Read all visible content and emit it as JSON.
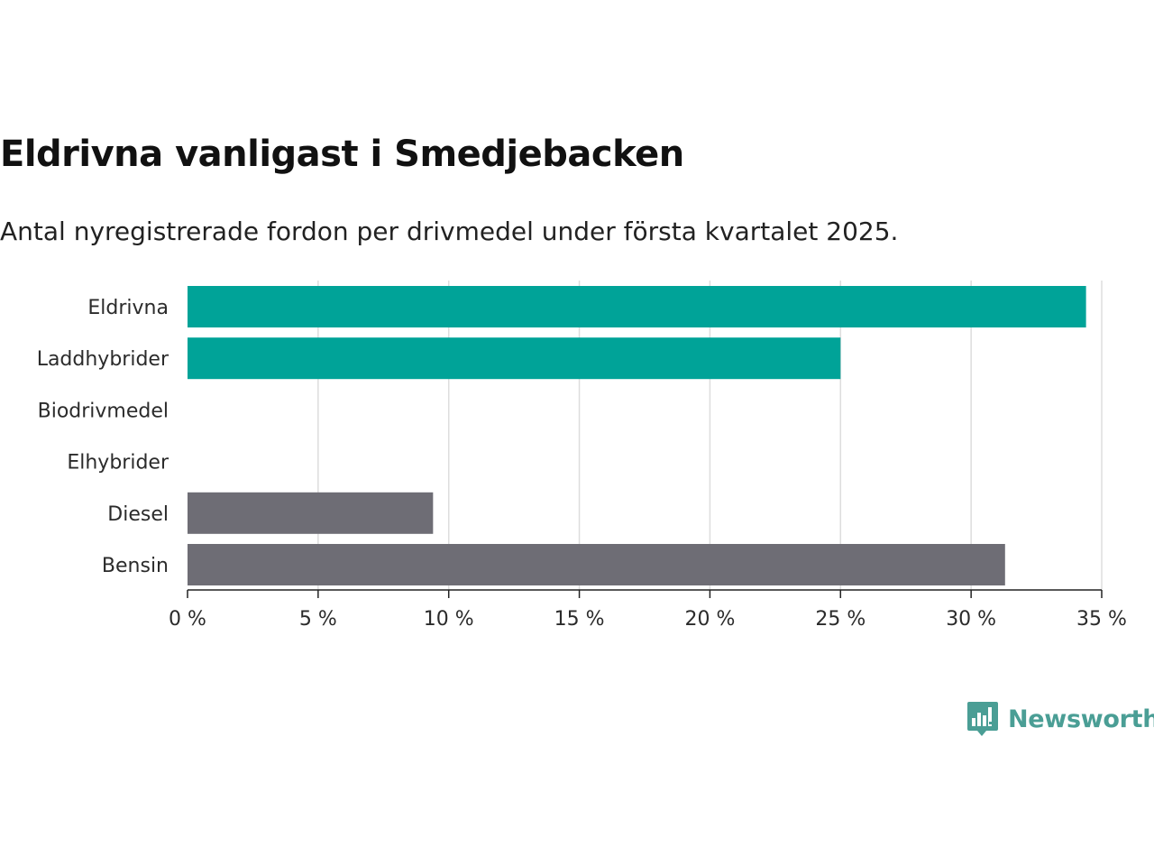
{
  "title": "Eldrivna vanligast i Smedjebacken",
  "subtitle": "Antal nyregistrerade fordon per drivmedel under första kvartalet 2025.",
  "brand": {
    "name": "Newsworthy",
    "icon": "newsworthy-bar-chart-logo",
    "color": "#4a9e95"
  },
  "colors": {
    "highlight": "#00a398",
    "other": "#6e6d75",
    "grid": "#dddddd",
    "axis": "#222222"
  },
  "chart_data": {
    "type": "bar",
    "orientation": "horizontal",
    "title": "Eldrivna vanligast i Smedjebacken",
    "subtitle": "Antal nyregistrerade fordon per drivmedel under första kvartalet 2025.",
    "categories": [
      "Eldrivna",
      "Laddhybrider",
      "Biodrivmedel",
      "Elhybrider",
      "Diesel",
      "Bensin"
    ],
    "values": [
      34.4,
      25.0,
      0,
      0,
      9.4,
      31.3
    ],
    "bar_colors": [
      "#00a398",
      "#00a398",
      "#00a398",
      "#6e6d75",
      "#6e6d75",
      "#6e6d75"
    ],
    "unit": "%",
    "xlim": [
      0,
      35
    ],
    "xticks": [
      0,
      5,
      10,
      15,
      20,
      25,
      30,
      35
    ],
    "xtick_labels": [
      "0 %",
      "5 %",
      "10 %",
      "15 %",
      "20 %",
      "25 %",
      "30 %",
      "35 %"
    ],
    "grid": "vertical",
    "legend": "none"
  }
}
